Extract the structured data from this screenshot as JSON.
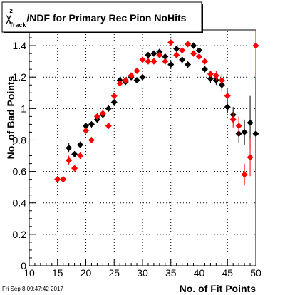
{
  "footer": {
    "timestamp": "Fri Sep  8 09:47:42 2017"
  },
  "chart_data": {
    "type": "scatter",
    "title_parts": {
      "chi": "χ",
      "sup": "2",
      "sub": "Track",
      "rest": "/NDF for Primary Rec Pion NoHits"
    },
    "xlabel": "No. of Fit Points",
    "ylabel": "No. of Bad Points",
    "xlim": [
      10,
      50
    ],
    "ylim": [
      0,
      1.5
    ],
    "x_ticks": [
      "10",
      "15",
      "20",
      "25",
      "30",
      "35",
      "40",
      "45",
      "50"
    ],
    "y_ticks": [
      "0",
      "0.2",
      "0.4",
      "0.6",
      "0.8",
      "1",
      "1.2",
      "1.4"
    ],
    "y_tick_values": [
      0,
      0.2,
      0.4,
      0.6,
      0.8,
      1.0,
      1.2,
      1.4
    ],
    "grid": true,
    "series": [
      {
        "color": "#000000",
        "points": [
          [
            15,
            0.55,
            0.02
          ],
          [
            16,
            0.55,
            0.02
          ],
          [
            17,
            0.75,
            0.03
          ],
          [
            18,
            0.71,
            0.02
          ],
          [
            19,
            0.77,
            0.02
          ],
          [
            20,
            0.89,
            0.02
          ],
          [
            21,
            0.9,
            0.02
          ],
          [
            22,
            0.93,
            0.02
          ],
          [
            23,
            0.96,
            0.02
          ],
          [
            24,
            1.0,
            0.02
          ],
          [
            25,
            1.04,
            0.02
          ],
          [
            26,
            1.18,
            0.02
          ],
          [
            27,
            1.17,
            0.02
          ],
          [
            28,
            1.2,
            0.02
          ],
          [
            29,
            1.18,
            0.02
          ],
          [
            30,
            1.2,
            0.02
          ],
          [
            31,
            1.34,
            0.02
          ],
          [
            32,
            1.35,
            0.02
          ],
          [
            33,
            1.36,
            0.02
          ],
          [
            34,
            1.33,
            0.02
          ],
          [
            35,
            1.28,
            0.02
          ],
          [
            36,
            1.38,
            0.02
          ],
          [
            37,
            1.31,
            0.02
          ],
          [
            38,
            1.28,
            0.02
          ],
          [
            39,
            1.4,
            0.02
          ],
          [
            40,
            1.37,
            0.02
          ],
          [
            41,
            1.25,
            0.02
          ],
          [
            42,
            1.19,
            0.03
          ],
          [
            43,
            1.18,
            0.03
          ],
          [
            44,
            1.15,
            0.04
          ],
          [
            45,
            1.01,
            0.04
          ],
          [
            46,
            0.96,
            0.05
          ],
          [
            47,
            0.84,
            0.06
          ],
          [
            48,
            0.85,
            0.08
          ],
          [
            49,
            0.91,
            0.17
          ],
          [
            50,
            0.84,
            0.22
          ]
        ]
      },
      {
        "color": "#ff0000",
        "points": [
          [
            15,
            0.55,
            0.02
          ],
          [
            16,
            0.55,
            0.02
          ],
          [
            17,
            0.67,
            0.03
          ],
          [
            18,
            0.62,
            0.02
          ],
          [
            19,
            0.7,
            0.02
          ],
          [
            20,
            0.86,
            0.02
          ],
          [
            21,
            0.8,
            0.02
          ],
          [
            22,
            0.95,
            0.02
          ],
          [
            23,
            0.97,
            0.02
          ],
          [
            24,
            0.89,
            0.02
          ],
          [
            25,
            1.08,
            0.02
          ],
          [
            26,
            1.16,
            0.02
          ],
          [
            27,
            1.18,
            0.02
          ],
          [
            28,
            1.21,
            0.02
          ],
          [
            29,
            1.24,
            0.02
          ],
          [
            30,
            1.31,
            0.02
          ],
          [
            31,
            1.3,
            0.02
          ],
          [
            32,
            1.3,
            0.02
          ],
          [
            33,
            1.34,
            0.02
          ],
          [
            34,
            1.3,
            0.02
          ],
          [
            35,
            1.42,
            0.02
          ],
          [
            36,
            1.34,
            0.02
          ],
          [
            37,
            1.37,
            0.02
          ],
          [
            38,
            1.41,
            0.02
          ],
          [
            39,
            1.35,
            0.02
          ],
          [
            40,
            1.33,
            0.02
          ],
          [
            41,
            1.3,
            0.02
          ],
          [
            42,
            1.22,
            0.02
          ],
          [
            43,
            1.21,
            0.03
          ],
          [
            44,
            1.18,
            0.04
          ],
          [
            45,
            1.08,
            0.05
          ],
          [
            46,
            0.93,
            0.05
          ],
          [
            47,
            0.89,
            0.06
          ],
          [
            48,
            0.58,
            0.07
          ],
          [
            49,
            0.69,
            0.12
          ],
          [
            50,
            1.4,
            0.2
          ]
        ]
      }
    ]
  }
}
